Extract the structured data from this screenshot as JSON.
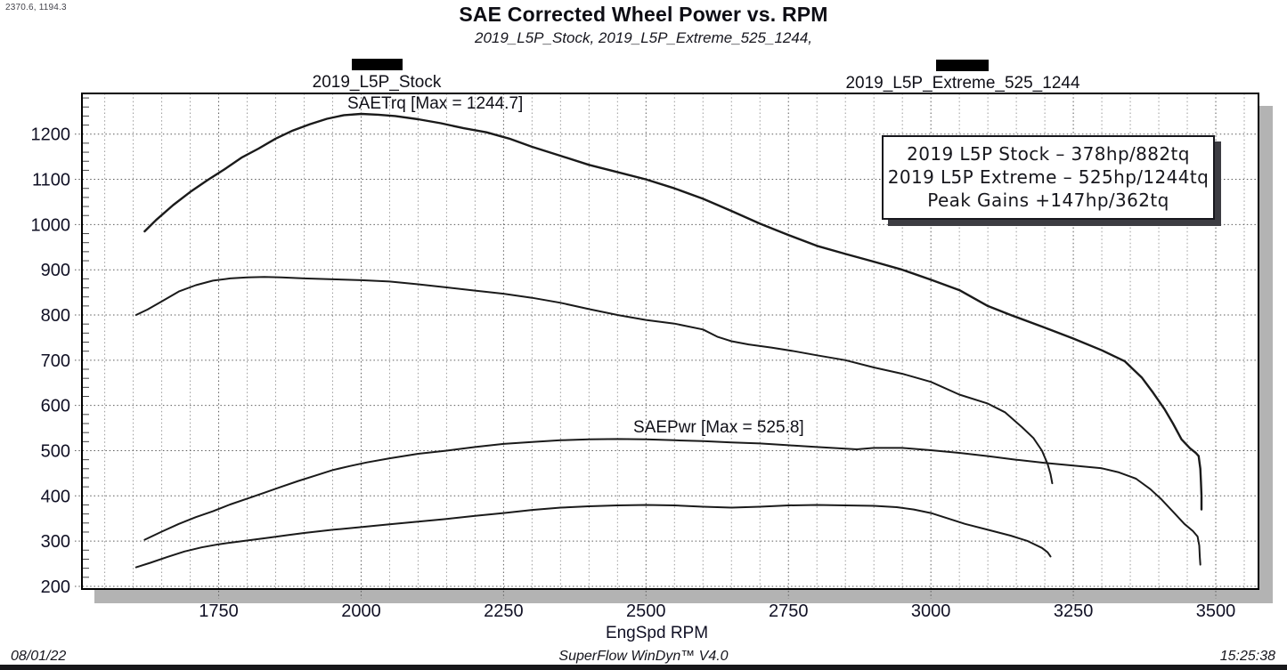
{
  "cursor_readout": "2370.6, 1194.3",
  "header": {
    "title": "SAE Corrected Wheel Power vs. RPM",
    "subtitle": "2019_L5P_Stock, 2019_L5P_Extreme_525_1244,"
  },
  "legend": {
    "items": [
      {
        "label": "2019_L5P_Stock",
        "swatch": "black-bar"
      },
      {
        "label": "2019_L5P_Extreme_525_1244",
        "swatch": "black-bar"
      }
    ]
  },
  "annotations": {
    "torque_max_label": "SAETrq [Max = 1244.7]",
    "power_max_label": "SAEPwr [Max = 525.8]"
  },
  "info_box": {
    "lines": [
      "2019 L5P Stock – 378hp/882tq",
      "2019 L5P Extreme – 525hp/1244tq",
      "Peak Gains +147hp/362tq"
    ]
  },
  "footer": {
    "date": "08/01/22",
    "app": "SuperFlow WinDyn™ V4.0",
    "time": "15:25:38"
  },
  "colors": {
    "curve": "#1a1a1a",
    "grid_minor": "#9a9a9a",
    "grid_major": "#5c5c5c",
    "plot_border": "#000000",
    "plot_shadow": "#b3b3b3",
    "tick_text": "#101024",
    "background": "#ffffff"
  },
  "chart_data": {
    "type": "line",
    "title": "SAE Corrected Wheel Power vs. RPM",
    "xlabel": "EngSpd RPM",
    "ylabel": "",
    "xlim": [
      1510,
      3575
    ],
    "ylim": [
      194,
      1290
    ],
    "x_ticks": [
      1750,
      2000,
      2250,
      2500,
      2750,
      3000,
      3250,
      3500
    ],
    "x_minor_step": 50,
    "y_ticks": [
      200,
      300,
      400,
      500,
      600,
      700,
      800,
      900,
      1000,
      1100,
      1200
    ],
    "y_minor_step": 20,
    "grid": true,
    "legend_position": "top",
    "series": [
      {
        "name": "SAETrq 2019_L5P_Extreme_525_1244",
        "unit": "lb-ft",
        "max": 1244.7,
        "points": [
          [
            1620,
            985
          ],
          [
            1640,
            1010
          ],
          [
            1670,
            1043
          ],
          [
            1700,
            1072
          ],
          [
            1730,
            1098
          ],
          [
            1760,
            1122
          ],
          [
            1790,
            1148
          ],
          [
            1820,
            1168
          ],
          [
            1850,
            1190
          ],
          [
            1880,
            1208
          ],
          [
            1910,
            1222
          ],
          [
            1940,
            1234
          ],
          [
            1970,
            1242
          ],
          [
            2000,
            1244.7
          ],
          [
            2030,
            1243
          ],
          [
            2060,
            1240
          ],
          [
            2100,
            1233
          ],
          [
            2140,
            1224
          ],
          [
            2180,
            1213
          ],
          [
            2220,
            1204
          ],
          [
            2260,
            1190
          ],
          [
            2300,
            1172
          ],
          [
            2350,
            1152
          ],
          [
            2400,
            1132
          ],
          [
            2450,
            1116
          ],
          [
            2500,
            1100
          ],
          [
            2550,
            1080
          ],
          [
            2600,
            1057
          ],
          [
            2650,
            1030
          ],
          [
            2700,
            1002
          ],
          [
            2750,
            977
          ],
          [
            2800,
            953
          ],
          [
            2850,
            935
          ],
          [
            2900,
            918
          ],
          [
            2950,
            900
          ],
          [
            3000,
            878
          ],
          [
            3050,
            855
          ],
          [
            3100,
            820
          ],
          [
            3140,
            800
          ],
          [
            3200,
            772
          ],
          [
            3250,
            748
          ],
          [
            3300,
            722
          ],
          [
            3340,
            698
          ],
          [
            3370,
            662
          ],
          [
            3390,
            628
          ],
          [
            3410,
            592
          ],
          [
            3425,
            560
          ],
          [
            3440,
            525
          ],
          [
            3455,
            505
          ],
          [
            3465,
            495
          ],
          [
            3470,
            488
          ],
          [
            3473,
            460
          ],
          [
            3474,
            430
          ],
          [
            3475,
            400
          ],
          [
            3475,
            370
          ]
        ]
      },
      {
        "name": "SAETrq 2019_L5P_Stock",
        "unit": "lb-ft",
        "max": 882,
        "points": [
          [
            1605,
            800
          ],
          [
            1625,
            812
          ],
          [
            1650,
            830
          ],
          [
            1680,
            852
          ],
          [
            1710,
            866
          ],
          [
            1740,
            876
          ],
          [
            1770,
            881
          ],
          [
            1800,
            883
          ],
          [
            1830,
            884
          ],
          [
            1860,
            883
          ],
          [
            1900,
            881
          ],
          [
            1950,
            879
          ],
          [
            2000,
            877
          ],
          [
            2050,
            874
          ],
          [
            2100,
            868
          ],
          [
            2150,
            861
          ],
          [
            2200,
            854
          ],
          [
            2250,
            847
          ],
          [
            2300,
            838
          ],
          [
            2350,
            827
          ],
          [
            2400,
            813
          ],
          [
            2450,
            800
          ],
          [
            2500,
            789
          ],
          [
            2550,
            781
          ],
          [
            2600,
            768
          ],
          [
            2625,
            752
          ],
          [
            2650,
            742
          ],
          [
            2680,
            735
          ],
          [
            2720,
            728
          ],
          [
            2760,
            720
          ],
          [
            2800,
            711
          ],
          [
            2850,
            700
          ],
          [
            2900,
            684
          ],
          [
            2950,
            670
          ],
          [
            3000,
            652
          ],
          [
            3050,
            624
          ],
          [
            3100,
            604
          ],
          [
            3130,
            585
          ],
          [
            3160,
            552
          ],
          [
            3180,
            528
          ],
          [
            3195,
            500
          ],
          [
            3205,
            470
          ],
          [
            3210,
            448
          ],
          [
            3213,
            428
          ]
        ]
      },
      {
        "name": "SAEPwr 2019_L5P_Extreme_525_1244",
        "unit": "hp",
        "max": 525.8,
        "points": [
          [
            1620,
            303
          ],
          [
            1650,
            321
          ],
          [
            1680,
            338
          ],
          [
            1710,
            353
          ],
          [
            1740,
            366
          ],
          [
            1770,
            381
          ],
          [
            1800,
            394
          ],
          [
            1830,
            407
          ],
          [
            1860,
            420
          ],
          [
            1890,
            433
          ],
          [
            1920,
            445
          ],
          [
            1950,
            457
          ],
          [
            1980,
            466
          ],
          [
            2010,
            474
          ],
          [
            2050,
            483
          ],
          [
            2100,
            493
          ],
          [
            2150,
            500
          ],
          [
            2200,
            508
          ],
          [
            2250,
            515
          ],
          [
            2300,
            519
          ],
          [
            2350,
            523
          ],
          [
            2400,
            525
          ],
          [
            2450,
            525.8
          ],
          [
            2500,
            525
          ],
          [
            2550,
            523
          ],
          [
            2600,
            521
          ],
          [
            2650,
            518
          ],
          [
            2700,
            516
          ],
          [
            2750,
            512
          ],
          [
            2800,
            508
          ],
          [
            2840,
            505
          ],
          [
            2870,
            503
          ],
          [
            2900,
            506
          ],
          [
            2950,
            506
          ],
          [
            3000,
            501
          ],
          [
            3050,
            495
          ],
          [
            3100,
            488
          ],
          [
            3150,
            480
          ],
          [
            3200,
            473
          ],
          [
            3250,
            467
          ],
          [
            3300,
            461
          ],
          [
            3330,
            452
          ],
          [
            3360,
            438
          ],
          [
            3385,
            415
          ],
          [
            3405,
            392
          ],
          [
            3425,
            365
          ],
          [
            3445,
            338
          ],
          [
            3460,
            322
          ],
          [
            3468,
            310
          ],
          [
            3471,
            290
          ],
          [
            3472,
            265
          ],
          [
            3473,
            248
          ]
        ]
      },
      {
        "name": "SAEPwr 2019_L5P_Stock",
        "unit": "hp",
        "max": 378,
        "points": [
          [
            1605,
            242
          ],
          [
            1630,
            252
          ],
          [
            1660,
            265
          ],
          [
            1690,
            277
          ],
          [
            1720,
            286
          ],
          [
            1750,
            293
          ],
          [
            1780,
            298
          ],
          [
            1810,
            303
          ],
          [
            1840,
            308
          ],
          [
            1870,
            313
          ],
          [
            1900,
            318
          ],
          [
            1950,
            325
          ],
          [
            2000,
            331
          ],
          [
            2050,
            337
          ],
          [
            2100,
            343
          ],
          [
            2150,
            349
          ],
          [
            2200,
            356
          ],
          [
            2250,
            362
          ],
          [
            2300,
            369
          ],
          [
            2350,
            374
          ],
          [
            2400,
            377
          ],
          [
            2450,
            379
          ],
          [
            2500,
            380
          ],
          [
            2550,
            379
          ],
          [
            2600,
            376
          ],
          [
            2650,
            374
          ],
          [
            2700,
            376
          ],
          [
            2750,
            379
          ],
          [
            2800,
            380
          ],
          [
            2850,
            379
          ],
          [
            2900,
            378
          ],
          [
            2940,
            375
          ],
          [
            2970,
            370
          ],
          [
            3000,
            362
          ],
          [
            3030,
            350
          ],
          [
            3060,
            338
          ],
          [
            3100,
            325
          ],
          [
            3140,
            312
          ],
          [
            3170,
            300
          ],
          [
            3195,
            285
          ],
          [
            3205,
            275
          ],
          [
            3210,
            266
          ]
        ]
      }
    ]
  }
}
